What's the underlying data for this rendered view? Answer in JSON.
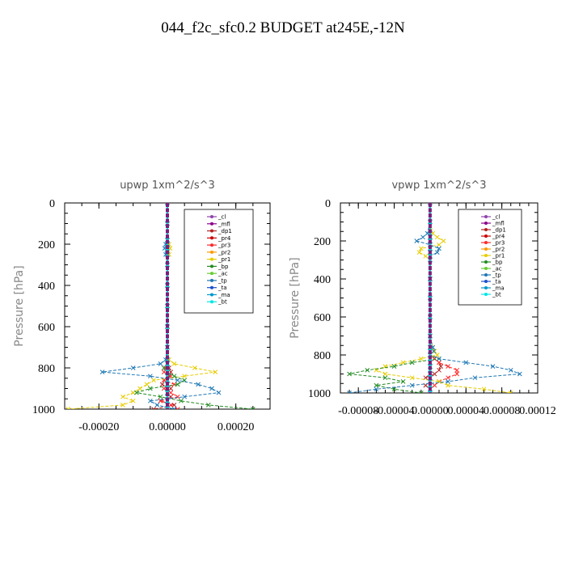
{
  "page_title": "044_f2c_sfc0.2  BUDGET at245E,-12N",
  "chart_data": [
    {
      "type": "line",
      "title": "upwp   1xm^2/s^3",
      "ylabel": "Pressure [hPa]",
      "xlabel": "",
      "xlim": [
        -0.0003,
        0.0003
      ],
      "ylim": [
        1000,
        0
      ],
      "x_tick_labels": [
        "-0.00020",
        "0.00000",
        "0.00020"
      ],
      "x_tick_values": [
        -0.0002,
        0,
        0.0002
      ],
      "y_tick_labels": [
        "0",
        "200",
        "400",
        "600",
        "800",
        "1000"
      ],
      "y_tick_values": [
        0,
        200,
        400,
        600,
        800,
        1000
      ],
      "legend_position": "top-right",
      "pressure_levels": [
        0,
        100,
        180,
        200,
        220,
        250,
        300,
        400,
        500,
        600,
        700,
        760,
        780,
        800,
        820,
        840,
        860,
        880,
        900,
        920,
        940,
        960,
        980,
        1000
      ],
      "series": [
        {
          "name": "_cl",
          "color": "#8e44ad",
          "values": [
            0,
            0,
            0,
            0,
            0,
            0,
            0,
            0,
            0,
            0,
            0,
            0,
            0,
            0,
            0,
            0,
            0,
            0,
            0,
            0,
            0,
            0,
            0,
            0
          ]
        },
        {
          "name": "_mfl",
          "color": "#8b008b",
          "values": [
            0,
            0,
            0,
            0,
            0,
            0,
            0,
            0,
            0,
            0,
            0,
            0,
            0,
            0,
            0,
            0,
            0,
            0,
            0,
            0,
            0,
            0,
            0,
            0
          ]
        },
        {
          "name": "_dp1",
          "color": "#b22222",
          "values": [
            0,
            0,
            0,
            0,
            0,
            0,
            0,
            0,
            0,
            0,
            0,
            0,
            0,
            5e-06,
            1e-05,
            5e-06,
            -1e-05,
            -1.5e-05,
            1e-05,
            0,
            1e-05,
            -2e-05,
            2e-05,
            -4e-05
          ]
        },
        {
          "name": "_pr4",
          "color": "#cc0000",
          "values": [
            0,
            0,
            0,
            0,
            0,
            0,
            0,
            0,
            0,
            0,
            0,
            0,
            0,
            0,
            0,
            0,
            0,
            0,
            0,
            0,
            0,
            0,
            0,
            0
          ]
        },
        {
          "name": "_pr3",
          "color": "#ff2a2a",
          "values": [
            0,
            0,
            0,
            0,
            0,
            0,
            0,
            0,
            0,
            0,
            0,
            0,
            0,
            -5e-06,
            -1e-05,
            1e-05,
            -1e-05,
            2e-05,
            -1e-05,
            1e-05,
            3e-05,
            -2e-05,
            1e-05,
            3e-05
          ]
        },
        {
          "name": "_pr2",
          "color": "#ff9900",
          "values": [
            0,
            0,
            0,
            0,
            0,
            0,
            0,
            0,
            0,
            0,
            0,
            0,
            0,
            0,
            0,
            0,
            0,
            0,
            0,
            0,
            0,
            0,
            0,
            0
          ]
        },
        {
          "name": "_pr1",
          "color": "#e6cc00",
          "values": [
            0,
            0,
            0,
            5e-06,
            8e-06,
            5e-06,
            0,
            0,
            0,
            0,
            0,
            5e-06,
            2e-05,
            8e-05,
            0.00014,
            5e-05,
            -4e-05,
            -6e-05,
            -8e-05,
            -0.0001,
            -0.00013,
            -0.0001,
            -0.00013,
            -0.00029
          ]
        },
        {
          "name": "_bp",
          "color": "#228b22",
          "values": [
            0,
            0,
            0,
            0,
            0,
            0,
            0,
            0,
            0,
            0,
            0,
            0,
            0,
            -1e-05,
            0,
            2e-05,
            5e-05,
            3e-05,
            -5e-05,
            -9e-05,
            -2e-05,
            4e-05,
            0.00012,
            0.00025
          ]
        },
        {
          "name": "_ac",
          "color": "#66cc33",
          "values": [
            0,
            0,
            0,
            0,
            0,
            0,
            0,
            0,
            0,
            0,
            0,
            0,
            0,
            0,
            0,
            0,
            0,
            0,
            0,
            0,
            0,
            0,
            0,
            0
          ]
        },
        {
          "name": "_tp",
          "color": "#1f77b4",
          "values": [
            0,
            0,
            0,
            -5e-06,
            -8e-06,
            -5e-06,
            0,
            0,
            0,
            0,
            0,
            -5e-06,
            -2e-05,
            -0.0001,
            -0.00019,
            -5e-05,
            3e-05,
            9e-05,
            0.00013,
            0.00015,
            5e-05,
            -5e-05,
            -3e-05,
            2e-05
          ]
        },
        {
          "name": "_ta",
          "color": "#1a4fcc",
          "values": [
            0,
            0,
            0,
            0,
            0,
            0,
            0,
            0,
            0,
            0,
            0,
            0,
            0,
            0,
            0,
            0,
            0,
            0,
            0,
            0,
            0,
            0,
            0,
            0
          ]
        },
        {
          "name": "_ma",
          "color": "#0099cc",
          "values": [
            0,
            0,
            0,
            0,
            0,
            0,
            0,
            0,
            0,
            0,
            0,
            0,
            0,
            0,
            0,
            0,
            0,
            0,
            0,
            0,
            0,
            0,
            0,
            0
          ]
        },
        {
          "name": "_bt",
          "color": "#00e5e5",
          "values": [
            0,
            0,
            0,
            0,
            0,
            0,
            0,
            0,
            0,
            0,
            0,
            0,
            0,
            0,
            0,
            0,
            0,
            0,
            0,
            0,
            0,
            0,
            0,
            0
          ]
        }
      ]
    },
    {
      "type": "line",
      "title": "vpwp   1xm^2/s^3",
      "ylabel": "Pressure [hPa]",
      "xlabel": "",
      "xlim": [
        -0.0001,
        0.00012
      ],
      "ylim": [
        1000,
        0
      ],
      "x_tick_labels": [
        "-0.00008",
        "-0.00004",
        "0.00000",
        "0.00004",
        "0.00008",
        "0.00012"
      ],
      "x_tick_values": [
        -8e-05,
        -4e-05,
        0,
        4e-05,
        8e-05,
        0.00012
      ],
      "y_tick_labels": [
        "0",
        "200",
        "400",
        "600",
        "800",
        "1000"
      ],
      "y_tick_values": [
        0,
        200,
        400,
        600,
        800,
        1000
      ],
      "legend_position": "top-right",
      "pressure_levels": [
        0,
        100,
        160,
        180,
        200,
        220,
        240,
        260,
        280,
        300,
        400,
        500,
        600,
        700,
        760,
        780,
        800,
        820,
        840,
        860,
        880,
        900,
        920,
        940,
        960,
        980,
        1000
      ],
      "series": [
        {
          "name": "_cl",
          "color": "#8e44ad",
          "values": [
            0,
            0,
            0,
            0,
            0,
            0,
            0,
            0,
            0,
            0,
            0,
            0,
            0,
            0,
            0,
            0,
            0,
            0,
            0,
            0,
            0,
            0,
            0,
            0,
            0,
            0,
            0
          ]
        },
        {
          "name": "_mfl",
          "color": "#8b008b",
          "values": [
            0,
            0,
            0,
            0,
            0,
            0,
            0,
            0,
            0,
            0,
            0,
            0,
            0,
            0,
            0,
            0,
            0,
            0,
            0,
            0,
            0,
            0,
            0,
            0,
            0,
            0,
            0
          ]
        },
        {
          "name": "_dp1",
          "color": "#b22222",
          "values": [
            0,
            0,
            0,
            0,
            0,
            0,
            0,
            0,
            0,
            0,
            0,
            0,
            0,
            0,
            0,
            0,
            0,
            5e-06,
            1e-05,
            1.2e-05,
            1e-05,
            5e-06,
            -5e-06,
            0,
            -5e-06,
            0,
            0
          ]
        },
        {
          "name": "_pr4",
          "color": "#cc0000",
          "values": [
            0,
            0,
            0,
            0,
            0,
            0,
            0,
            0,
            0,
            0,
            0,
            0,
            0,
            0,
            0,
            0,
            0,
            0,
            0,
            0,
            0,
            0,
            0,
            0,
            0,
            0,
            0
          ]
        },
        {
          "name": "_pr3",
          "color": "#ff2a2a",
          "values": [
            0,
            0,
            0,
            0,
            0,
            0,
            0,
            0,
            0,
            0,
            0,
            0,
            0,
            0,
            0,
            0,
            0,
            5e-06,
            1e-05,
            2e-05,
            3e-05,
            3e-05,
            2e-05,
            1e-05,
            5e-06,
            0,
            0
          ]
        },
        {
          "name": "_pr2",
          "color": "#ff9900",
          "values": [
            0,
            0,
            0,
            0,
            0,
            0,
            0,
            0,
            0,
            0,
            0,
            0,
            0,
            0,
            0,
            0,
            0,
            0,
            0,
            0,
            0,
            0,
            0,
            0,
            0,
            0,
            0
          ]
        },
        {
          "name": "_pr1",
          "color": "#e6cc00",
          "values": [
            0,
            0,
            3e-06,
            8e-06,
            1.5e-05,
            1e-05,
            -1e-05,
            -1.2e-05,
            -5e-06,
            0,
            0,
            0,
            0,
            0,
            3e-06,
            5e-06,
            8e-06,
            -1e-05,
            -3e-05,
            -5e-05,
            -6e-05,
            -5e-05,
            -2e-05,
            1e-05,
            2e-05,
            6e-05,
            9e-05
          ]
        },
        {
          "name": "_bp",
          "color": "#228b22",
          "values": [
            0,
            0,
            0,
            0,
            0,
            0,
            0,
            0,
            0,
            0,
            0,
            0,
            0,
            0,
            0,
            0,
            0,
            1e-05,
            -2e-05,
            -4e-05,
            -7e-05,
            -9e-05,
            -5e-05,
            -3e-05,
            -6e-05,
            -4e-05,
            -1e-05
          ]
        },
        {
          "name": "_ac",
          "color": "#66cc33",
          "values": [
            0,
            0,
            0,
            0,
            0,
            0,
            0,
            0,
            0,
            0,
            0,
            0,
            0,
            0,
            0,
            0,
            0,
            0,
            0,
            0,
            0,
            0,
            0,
            0,
            0,
            0,
            0
          ]
        },
        {
          "name": "_tp",
          "color": "#1f77b4",
          "values": [
            0,
            0,
            -3e-06,
            -8e-06,
            -1.5e-05,
            0,
            1e-05,
            8e-06,
            0,
            0,
            0,
            0,
            0,
            0,
            3e-06,
            4e-06,
            0,
            1e-05,
            4e-05,
            7e-05,
            9e-05,
            0.0001,
            5e-05,
            2e-05,
            -2e-05,
            -6e-05,
            -9e-05
          ]
        },
        {
          "name": "_ta",
          "color": "#1a4fcc",
          "values": [
            0,
            0,
            0,
            0,
            0,
            0,
            0,
            0,
            0,
            0,
            0,
            0,
            0,
            0,
            0,
            0,
            0,
            0,
            0,
            0,
            0,
            0,
            0,
            0,
            0,
            0,
            0
          ]
        },
        {
          "name": "_ma",
          "color": "#0099cc",
          "values": [
            0,
            0,
            0,
            0,
            0,
            0,
            0,
            0,
            0,
            0,
            0,
            0,
            0,
            0,
            0,
            0,
            0,
            0,
            0,
            0,
            0,
            0,
            0,
            0,
            0,
            0,
            0
          ]
        },
        {
          "name": "_bt",
          "color": "#00e5e5",
          "values": [
            0,
            0,
            0,
            0,
            0,
            0,
            0,
            0,
            0,
            0,
            0,
            0,
            0,
            0,
            0,
            0,
            0,
            0,
            0,
            0,
            0,
            0,
            0,
            0,
            0,
            0,
            0
          ]
        }
      ]
    }
  ]
}
